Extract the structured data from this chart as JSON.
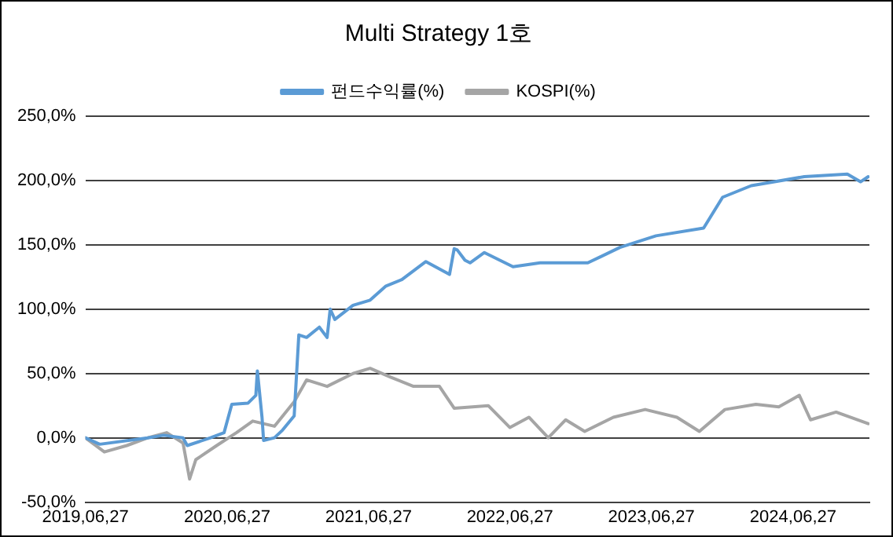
{
  "chart_data": {
    "type": "line",
    "title": "Multi Strategy 1호",
    "legend": "top",
    "grid": "y",
    "line_style": "solid",
    "marker": "none",
    "xlim": [
      "2019-06-27",
      "2025-01-10"
    ],
    "xticks": [
      {
        "value": "2019-06-27",
        "label": "2019,06,27"
      },
      {
        "value": "2020-06-27",
        "label": "2020,06,27"
      },
      {
        "value": "2021-06-27",
        "label": "2021,06,27"
      },
      {
        "value": "2022-06-27",
        "label": "2022,06,27"
      },
      {
        "value": "2023-06-27",
        "label": "2023,06,27"
      },
      {
        "value": "2024-06-27",
        "label": "2024,06,27"
      }
    ],
    "ylim": [
      -50,
      250
    ],
    "yticks": [
      {
        "value": -50,
        "label": "-50,0%"
      },
      {
        "value": 0,
        "label": "0,0%"
      },
      {
        "value": 50,
        "label": "50,0%"
      },
      {
        "value": 100,
        "label": "100,0%"
      },
      {
        "value": 150,
        "label": "150,0%"
      },
      {
        "value": 200,
        "label": "200,0%"
      },
      {
        "value": 250,
        "label": "250,0%"
      }
    ],
    "series": [
      {
        "name": "펀드수익률(%)",
        "color": "#5b9bd5",
        "x": [
          "2019-06-27",
          "2019-08-03",
          "2019-12-05",
          "2020-01-15",
          "2020-03-05",
          "2020-03-16",
          "2020-05-15",
          "2020-06-19",
          "2020-07-09",
          "2020-08-20",
          "2020-09-09",
          "2020-09-13",
          "2020-09-25",
          "2020-09-29",
          "2020-10-27",
          "2020-11-17",
          "2020-12-17",
          "2020-12-29",
          "2021-01-18",
          "2021-02-20",
          "2021-03-12",
          "2021-03-20",
          "2021-04-01",
          "2021-05-18",
          "2021-07-01",
          "2021-08-11",
          "2021-09-21",
          "2021-11-22",
          "2022-01-22",
          "2022-02-03",
          "2022-02-11",
          "2022-03-03",
          "2022-03-16",
          "2022-04-22",
          "2022-07-05",
          "2022-09-13",
          "2023-01-14",
          "2023-04-07",
          "2023-07-09",
          "2023-11-09",
          "2023-12-28",
          "2024-03-11",
          "2024-07-26",
          "2024-11-14",
          "2024-12-18",
          "2025-01-07"
        ],
        "values": [
          0,
          -5,
          0,
          2,
          0,
          -6,
          0,
          4,
          26,
          27,
          33,
          52,
          16,
          -2,
          0,
          6,
          17,
          80,
          78,
          86,
          78,
          100,
          92,
          103,
          107,
          118,
          123,
          137,
          127,
          147,
          146,
          138,
          136,
          144,
          133,
          136,
          136,
          148,
          157,
          163,
          187,
          196,
          203,
          205,
          199,
          203
        ]
      },
      {
        "name": "KOSPI(%)",
        "color": "#a5a5a5",
        "x": [
          "2019-06-27",
          "2019-08-15",
          "2019-10-12",
          "2019-12-05",
          "2020-01-23",
          "2020-03-05",
          "2020-03-22",
          "2020-04-07",
          "2020-05-31",
          "2020-07-21",
          "2020-09-01",
          "2020-10-27",
          "2020-12-17",
          "2021-01-18",
          "2021-03-12",
          "2021-05-18",
          "2021-07-01",
          "2021-08-24",
          "2021-10-21",
          "2021-12-27",
          "2022-02-03",
          "2022-05-02",
          "2022-06-27",
          "2022-08-15",
          "2022-10-04",
          "2022-11-18",
          "2023-01-06",
          "2023-03-21",
          "2023-06-11",
          "2023-09-01",
          "2023-10-29",
          "2024-01-03",
          "2024-03-23",
          "2024-05-21",
          "2024-07-13",
          "2024-08-11",
          "2024-10-16",
          "2025-01-07"
        ],
        "values": [
          0,
          -11,
          -6,
          0,
          4,
          -4,
          -32,
          -17,
          -6,
          4,
          13,
          9,
          28,
          45,
          40,
          50,
          54,
          47,
          40,
          40,
          23,
          25,
          8,
          16,
          0,
          14,
          5,
          16,
          22,
          16,
          5,
          22,
          26,
          24,
          33,
          14,
          20,
          11
        ]
      }
    ]
  }
}
